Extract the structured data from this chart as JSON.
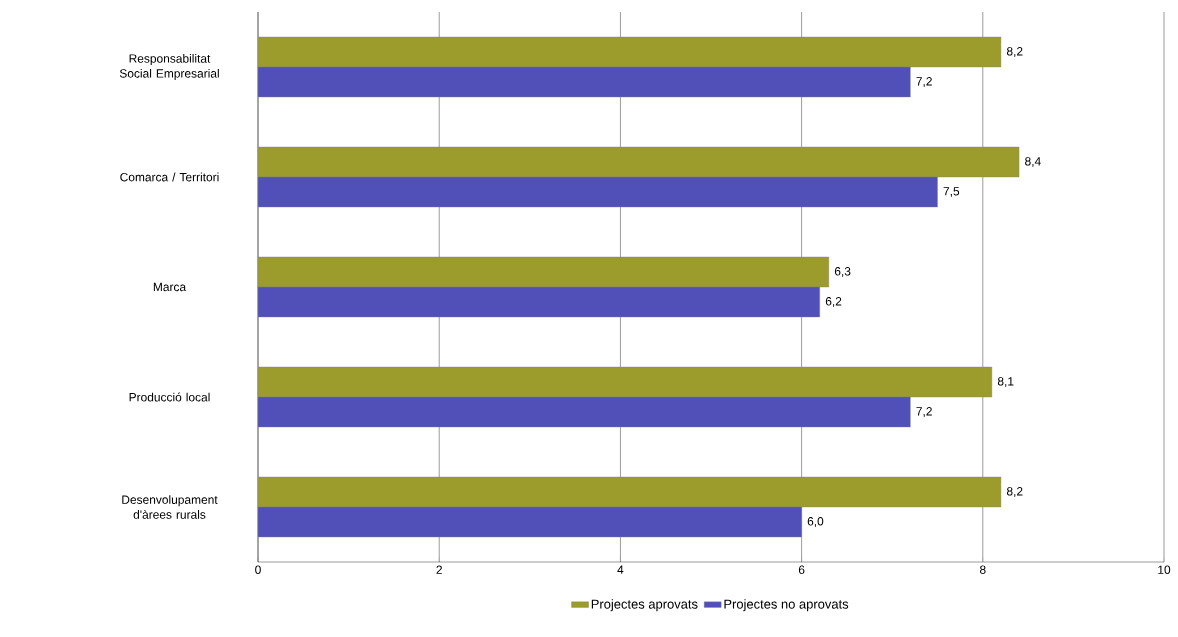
{
  "chart_data": {
    "type": "bar",
    "orientation": "horizontal",
    "categories": [
      "Responsabilitat Social Empresarial",
      "Comarca / Territori",
      "Marca",
      "Producció local",
      "Desenvolupament d'àrees rurals"
    ],
    "series": [
      {
        "name": "Projectes aprovats",
        "color": "#9c9c2c",
        "values": [
          8.2,
          8.4,
          6.3,
          8.1,
          8.2
        ],
        "value_labels": [
          "8,2",
          "8,4",
          "6,3",
          "8,1",
          "8,2"
        ]
      },
      {
        "name": "Projectes no aprovats",
        "color": "#5050b8",
        "values": [
          7.2,
          7.5,
          6.2,
          7.2,
          6.0
        ],
        "value_labels": [
          "7,2",
          "7,5",
          "6,2",
          "7,2",
          "6,0"
        ]
      }
    ],
    "xlim": [
      0,
      10
    ],
    "xticks": [
      0,
      2,
      4,
      6,
      8,
      10
    ],
    "grid": "x",
    "legend": "bottom"
  }
}
